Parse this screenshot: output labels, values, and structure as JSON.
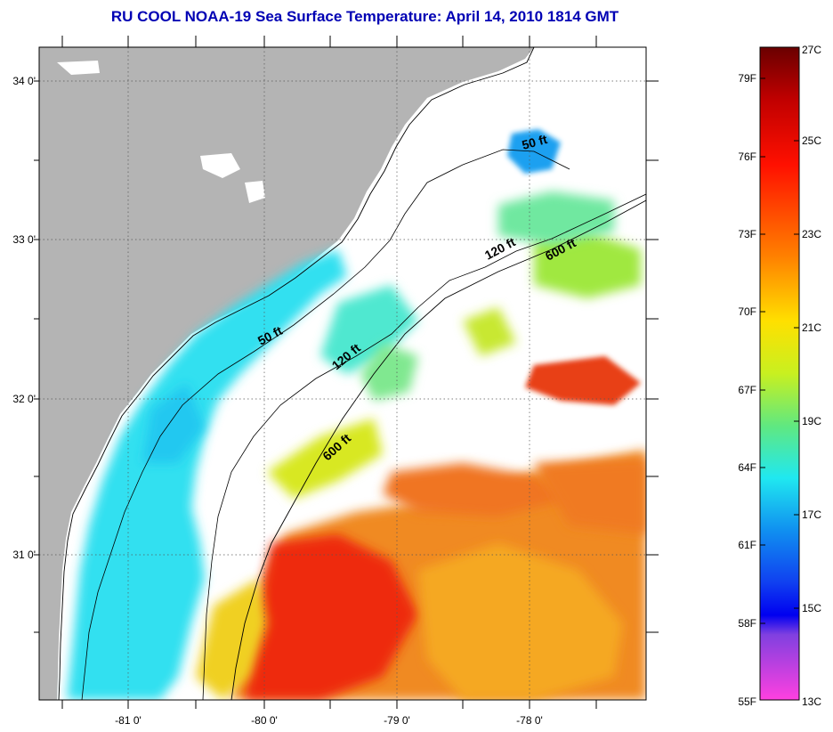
{
  "title": "RU COOL  NOAA-19  Sea Surface Temperature:  April 14, 2010 1814 GMT",
  "map": {
    "lat_ticks": [
      {
        "label": "34 0'",
        "value": 34
      },
      {
        "label": "33 0'",
        "value": 33
      },
      {
        "label": "32 0'",
        "value": 32
      },
      {
        "label": "31 0'",
        "value": 31
      }
    ],
    "lon_ticks": [
      {
        "label": "-81 0'",
        "value": -81
      },
      {
        "label": "-80 0'",
        "value": -80
      },
      {
        "label": "-79 0'",
        "value": -79
      },
      {
        "label": "-78 0'",
        "value": -78
      }
    ],
    "lat_range": [
      30.0,
      34.2
    ],
    "lon_range": [
      -81.7,
      -77.1
    ],
    "contour_labels": [
      "50 ft",
      "50 ft",
      "120 ft",
      "120 ft",
      "600 ft",
      "600 ft"
    ],
    "colors": {
      "land": "#b4b4b4",
      "cloud": "#ffffff",
      "warm_gulf_stream": "#f05010",
      "cool_shelf": "#30e0f0"
    }
  },
  "colorbar": {
    "celsius_labels": [
      "27C",
      "25C",
      "23C",
      "21C",
      "19C",
      "17C",
      "15C",
      "13C"
    ],
    "fahrenheit_labels": [
      "79F",
      "76F",
      "73F",
      "70F",
      "67F",
      "64F",
      "61F",
      "58F",
      "55F"
    ]
  }
}
